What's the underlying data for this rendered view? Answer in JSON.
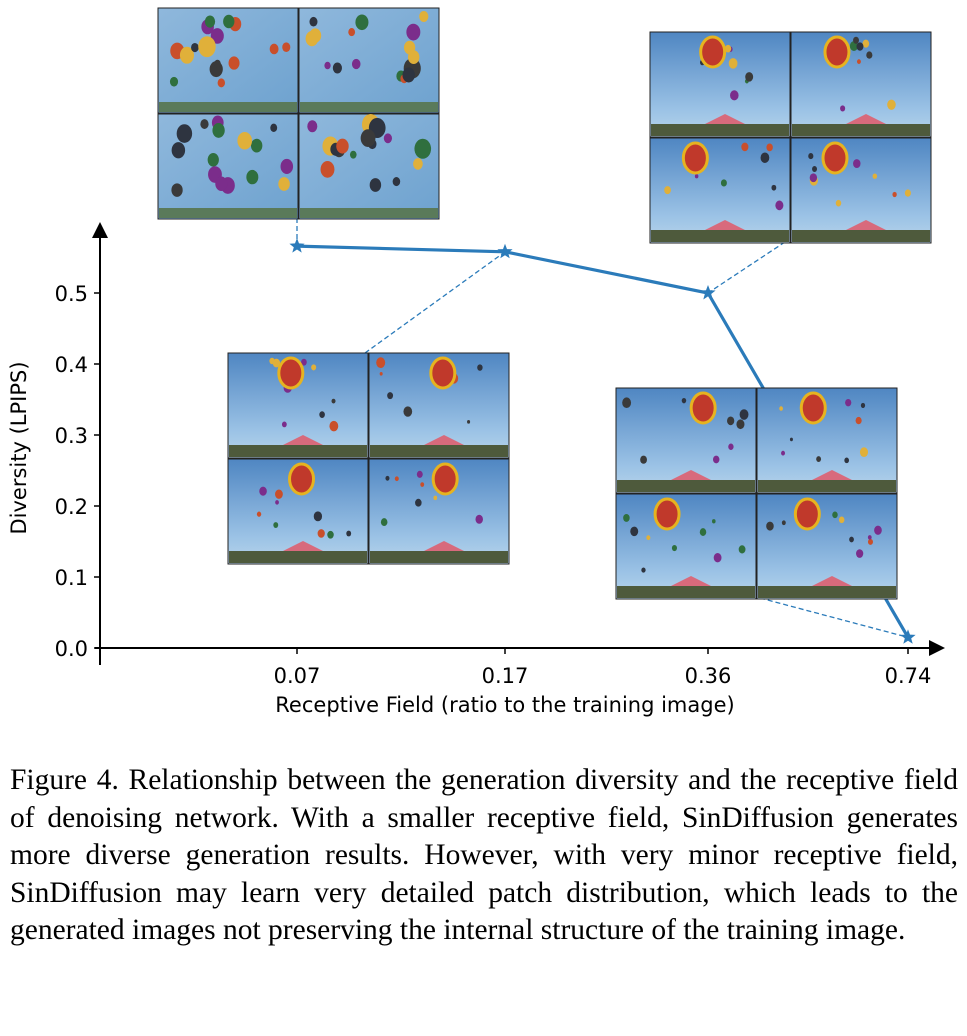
{
  "chart_data": {
    "type": "line",
    "x_label": "Receptive Field (ratio to the training image)",
    "y_label": "Diversity (LPIPS)",
    "categories": [
      "0.07",
      "0.17",
      "0.36",
      "0.74"
    ],
    "series": [
      {
        "name": "SinDiffusion",
        "color": "#2b7bba",
        "values": [
          0.566,
          0.558,
          0.5,
          0.015
        ]
      }
    ],
    "ylim": [
      0,
      0.6
    ],
    "yticks": [
      {
        "value": 0,
        "label": "0.0"
      },
      0.1,
      0.2,
      0.3,
      0.4,
      0.5
    ]
  },
  "caption": "Figure 4. Relationship between the generation diversity and the receptive field of denoising network. With a smaller receptive field, SinDiffusion generates more diverse generation results. However, with very minor receptive field, SinDiffusion may learn very detailed patch distribution, which leads to the generated images not preserving the internal structure of the training image."
}
